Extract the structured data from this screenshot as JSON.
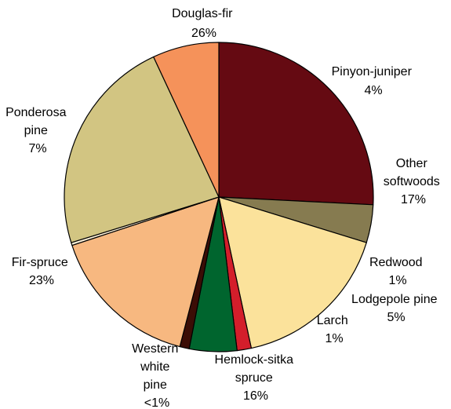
{
  "chart_data": {
    "type": "pie",
    "start_angle_deg": 270,
    "direction": "clockwise",
    "slices": [
      {
        "id": "douglas-fir",
        "label_lines": [
          "Douglas-fir",
          "26%"
        ],
        "value": 26,
        "color": "#650A12"
      },
      {
        "id": "pinyon-juniper",
        "label_lines": [
          "Pinyon-juniper",
          "4%"
        ],
        "value": 4,
        "color": "#867B50"
      },
      {
        "id": "other-softwoods",
        "label_lines": [
          "Other",
          "softwoods",
          "17%"
        ],
        "value": 17,
        "color": "#FBE29B"
      },
      {
        "id": "redwood",
        "label_lines": [
          "Redwood",
          "1%"
        ],
        "value": 1.5,
        "color": "#D41E2B"
      },
      {
        "id": "lodgepole-pine",
        "label_lines": [
          "Lodgepole pine",
          "5%"
        ],
        "value": 5,
        "color": "#00652E"
      },
      {
        "id": "larch",
        "label_lines": [
          "Larch",
          "1%"
        ],
        "value": 1,
        "color": "#3B0D06"
      },
      {
        "id": "hemlock-sitka-spruce",
        "label_lines": [
          "Hemlock-sitka",
          "spruce",
          "16%"
        ],
        "value": 16,
        "color": "#F7B880"
      },
      {
        "id": "western-white-pine",
        "label_lines": [
          "Western",
          "white",
          "pine",
          "<1%"
        ],
        "value": 0.3,
        "color": "#FBEFD6"
      },
      {
        "id": "fir-spruce",
        "label_lines": [
          "Fir-spruce",
          "23%"
        ],
        "value": 23,
        "color": "#D2C582"
      },
      {
        "id": "ponderosa-pine",
        "label_lines": [
          "Ponderosa",
          "pine",
          "7%"
        ],
        "value": 7,
        "color": "#F5925A"
      }
    ]
  }
}
